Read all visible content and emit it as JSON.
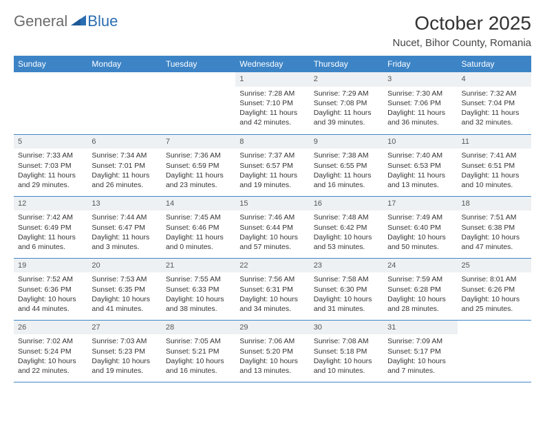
{
  "logo": {
    "general": "General",
    "blue": "Blue"
  },
  "title": "October 2025",
  "location": "Nucet, Bihor County, Romania",
  "colors": {
    "header_bg": "#3d84c6",
    "header_text": "#ffffff",
    "daynum_bg": "#eef1f3",
    "border": "#3d84c6",
    "logo_gray": "#6b6b6b",
    "logo_blue": "#2a6db0"
  },
  "weekdays": [
    "Sunday",
    "Monday",
    "Tuesday",
    "Wednesday",
    "Thursday",
    "Friday",
    "Saturday"
  ],
  "weeks": [
    [
      {
        "n": "",
        "lines": []
      },
      {
        "n": "",
        "lines": []
      },
      {
        "n": "",
        "lines": []
      },
      {
        "n": "1",
        "lines": [
          "Sunrise: 7:28 AM",
          "Sunset: 7:10 PM",
          "Daylight: 11 hours and 42 minutes."
        ]
      },
      {
        "n": "2",
        "lines": [
          "Sunrise: 7:29 AM",
          "Sunset: 7:08 PM",
          "Daylight: 11 hours and 39 minutes."
        ]
      },
      {
        "n": "3",
        "lines": [
          "Sunrise: 7:30 AM",
          "Sunset: 7:06 PM",
          "Daylight: 11 hours and 36 minutes."
        ]
      },
      {
        "n": "4",
        "lines": [
          "Sunrise: 7:32 AM",
          "Sunset: 7:04 PM",
          "Daylight: 11 hours and 32 minutes."
        ]
      }
    ],
    [
      {
        "n": "5",
        "lines": [
          "Sunrise: 7:33 AM",
          "Sunset: 7:03 PM",
          "Daylight: 11 hours and 29 minutes."
        ]
      },
      {
        "n": "6",
        "lines": [
          "Sunrise: 7:34 AM",
          "Sunset: 7:01 PM",
          "Daylight: 11 hours and 26 minutes."
        ]
      },
      {
        "n": "7",
        "lines": [
          "Sunrise: 7:36 AM",
          "Sunset: 6:59 PM",
          "Daylight: 11 hours and 23 minutes."
        ]
      },
      {
        "n": "8",
        "lines": [
          "Sunrise: 7:37 AM",
          "Sunset: 6:57 PM",
          "Daylight: 11 hours and 19 minutes."
        ]
      },
      {
        "n": "9",
        "lines": [
          "Sunrise: 7:38 AM",
          "Sunset: 6:55 PM",
          "Daylight: 11 hours and 16 minutes."
        ]
      },
      {
        "n": "10",
        "lines": [
          "Sunrise: 7:40 AM",
          "Sunset: 6:53 PM",
          "Daylight: 11 hours and 13 minutes."
        ]
      },
      {
        "n": "11",
        "lines": [
          "Sunrise: 7:41 AM",
          "Sunset: 6:51 PM",
          "Daylight: 11 hours and 10 minutes."
        ]
      }
    ],
    [
      {
        "n": "12",
        "lines": [
          "Sunrise: 7:42 AM",
          "Sunset: 6:49 PM",
          "Daylight: 11 hours and 6 minutes."
        ]
      },
      {
        "n": "13",
        "lines": [
          "Sunrise: 7:44 AM",
          "Sunset: 6:47 PM",
          "Daylight: 11 hours and 3 minutes."
        ]
      },
      {
        "n": "14",
        "lines": [
          "Sunrise: 7:45 AM",
          "Sunset: 6:46 PM",
          "Daylight: 11 hours and 0 minutes."
        ]
      },
      {
        "n": "15",
        "lines": [
          "Sunrise: 7:46 AM",
          "Sunset: 6:44 PM",
          "Daylight: 10 hours and 57 minutes."
        ]
      },
      {
        "n": "16",
        "lines": [
          "Sunrise: 7:48 AM",
          "Sunset: 6:42 PM",
          "Daylight: 10 hours and 53 minutes."
        ]
      },
      {
        "n": "17",
        "lines": [
          "Sunrise: 7:49 AM",
          "Sunset: 6:40 PM",
          "Daylight: 10 hours and 50 minutes."
        ]
      },
      {
        "n": "18",
        "lines": [
          "Sunrise: 7:51 AM",
          "Sunset: 6:38 PM",
          "Daylight: 10 hours and 47 minutes."
        ]
      }
    ],
    [
      {
        "n": "19",
        "lines": [
          "Sunrise: 7:52 AM",
          "Sunset: 6:36 PM",
          "Daylight: 10 hours and 44 minutes."
        ]
      },
      {
        "n": "20",
        "lines": [
          "Sunrise: 7:53 AM",
          "Sunset: 6:35 PM",
          "Daylight: 10 hours and 41 minutes."
        ]
      },
      {
        "n": "21",
        "lines": [
          "Sunrise: 7:55 AM",
          "Sunset: 6:33 PM",
          "Daylight: 10 hours and 38 minutes."
        ]
      },
      {
        "n": "22",
        "lines": [
          "Sunrise: 7:56 AM",
          "Sunset: 6:31 PM",
          "Daylight: 10 hours and 34 minutes."
        ]
      },
      {
        "n": "23",
        "lines": [
          "Sunrise: 7:58 AM",
          "Sunset: 6:30 PM",
          "Daylight: 10 hours and 31 minutes."
        ]
      },
      {
        "n": "24",
        "lines": [
          "Sunrise: 7:59 AM",
          "Sunset: 6:28 PM",
          "Daylight: 10 hours and 28 minutes."
        ]
      },
      {
        "n": "25",
        "lines": [
          "Sunrise: 8:01 AM",
          "Sunset: 6:26 PM",
          "Daylight: 10 hours and 25 minutes."
        ]
      }
    ],
    [
      {
        "n": "26",
        "lines": [
          "Sunrise: 7:02 AM",
          "Sunset: 5:24 PM",
          "Daylight: 10 hours and 22 minutes."
        ]
      },
      {
        "n": "27",
        "lines": [
          "Sunrise: 7:03 AM",
          "Sunset: 5:23 PM",
          "Daylight: 10 hours and 19 minutes."
        ]
      },
      {
        "n": "28",
        "lines": [
          "Sunrise: 7:05 AM",
          "Sunset: 5:21 PM",
          "Daylight: 10 hours and 16 minutes."
        ]
      },
      {
        "n": "29",
        "lines": [
          "Sunrise: 7:06 AM",
          "Sunset: 5:20 PM",
          "Daylight: 10 hours and 13 minutes."
        ]
      },
      {
        "n": "30",
        "lines": [
          "Sunrise: 7:08 AM",
          "Sunset: 5:18 PM",
          "Daylight: 10 hours and 10 minutes."
        ]
      },
      {
        "n": "31",
        "lines": [
          "Sunrise: 7:09 AM",
          "Sunset: 5:17 PM",
          "Daylight: 10 hours and 7 minutes."
        ]
      },
      {
        "n": "",
        "lines": []
      }
    ]
  ]
}
